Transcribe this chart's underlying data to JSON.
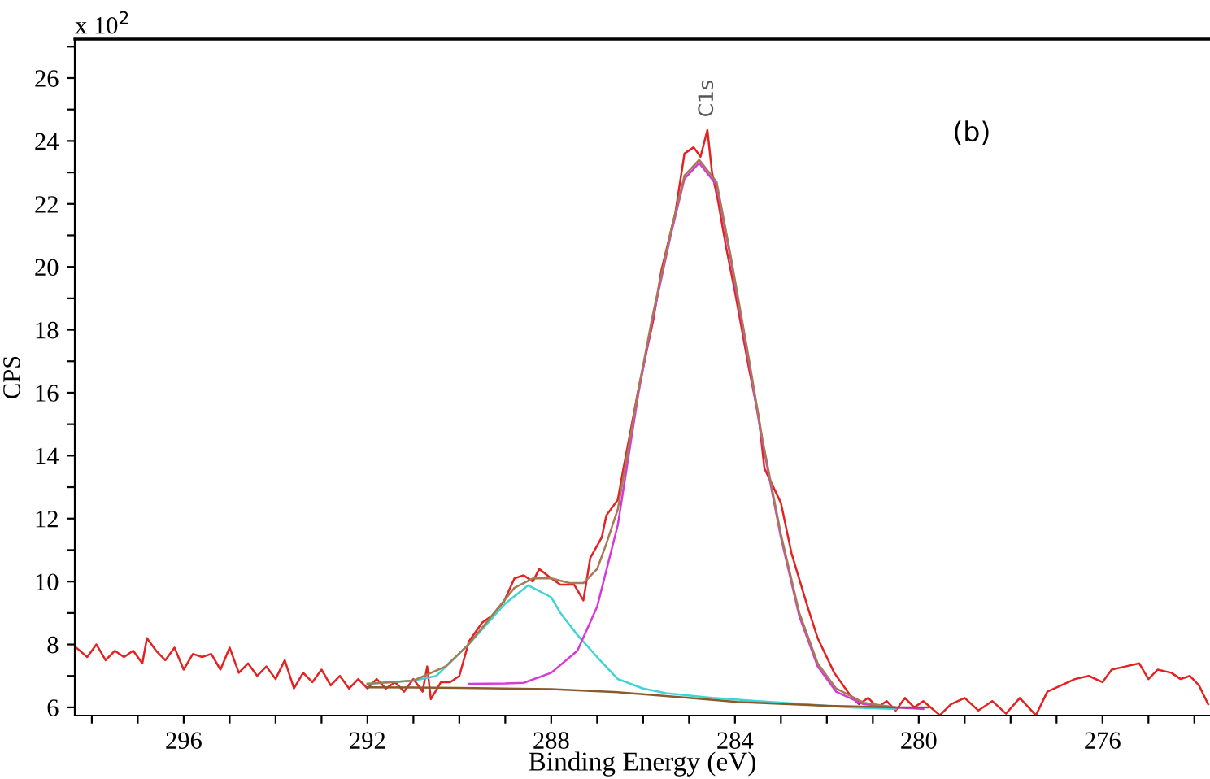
{
  "chart_data": {
    "type": "line",
    "xlabel": "Binding Energy (eV)",
    "ylabel": "CPS",
    "xlim": [
      298.37,
      273.66
    ],
    "ylim": [
      5.74,
      27.24
    ],
    "xticks": [
      {
        "value": 298,
        "label": null
      },
      {
        "value": 297,
        "label": null
      },
      296,
      {
        "value": 295,
        "label": null
      },
      {
        "value": 294,
        "label": null
      },
      {
        "value": 293,
        "label": null
      },
      292,
      {
        "value": 291,
        "label": null
      },
      {
        "value": 290,
        "label": null
      },
      {
        "value": 289,
        "label": null
      },
      288,
      {
        "value": 287,
        "label": null
      },
      {
        "value": 286,
        "label": null
      },
      {
        "value": 285,
        "label": null
      },
      284,
      {
        "value": 283,
        "label": null
      },
      {
        "value": 282,
        "label": null
      },
      {
        "value": 281,
        "label": null
      },
      280,
      {
        "value": 279,
        "label": null
      },
      {
        "value": 278,
        "label": null
      },
      {
        "value": 277,
        "label": null
      },
      276,
      {
        "value": 275,
        "label": null
      },
      {
        "value": 274,
        "label": null
      }
    ],
    "yticks": [
      6,
      {
        "value": 7,
        "label": null
      },
      8,
      {
        "value": 9,
        "label": null
      },
      10,
      {
        "value": 11,
        "label": null
      },
      12,
      {
        "value": 13,
        "label": null
      },
      14,
      {
        "value": 15,
        "label": null
      },
      16,
      {
        "value": 17,
        "label": null
      },
      18,
      {
        "value": 19,
        "label": null
      },
      20,
      {
        "value": 21,
        "label": null
      },
      22,
      {
        "value": 23,
        "label": null
      },
      24,
      {
        "value": 25,
        "label": null
      },
      26,
      {
        "value": 27,
        "label": null
      }
    ],
    "grid": false,
    "legend": false,
    "marker": "none",
    "line_style": "solid",
    "annotations": [
      "x 10$^{2}$",
      {
        "text": "C1s",
        "x": 284.6,
        "y": 24.35
      },
      "(b)"
    ],
    "series": [
      {
        "color": "#e32222",
        "x": [
          298.34,
          298.1,
          297.9,
          297.7,
          297.5,
          297.3,
          297.1,
          296.9,
          296.8,
          296.6,
          296.4,
          296.2,
          296.0,
          295.8,
          295.6,
          295.4,
          295.2,
          295.0,
          294.8,
          294.6,
          294.4,
          294.2,
          294.0,
          293.8,
          293.6,
          293.4,
          293.2,
          293.0,
          292.8,
          292.6,
          292.4,
          292.2,
          292.0,
          291.8,
          291.6,
          291.4,
          291.2,
          291.0,
          290.8,
          290.7,
          290.62,
          290.4,
          290.2,
          290.0,
          289.79,
          289.5,
          289.3,
          289.03,
          288.8,
          288.6,
          288.4,
          288.26,
          288.0,
          287.8,
          287.6,
          287.5,
          287.3,
          287.15,
          286.9,
          286.8,
          286.55,
          286.44,
          286.09,
          285.78,
          285.6,
          285.3,
          285.1,
          284.9,
          284.75,
          284.6,
          284.5,
          284.37,
          284.19,
          284.0,
          283.7,
          283.48,
          283.36,
          283.0,
          282.77,
          282.42,
          282.2,
          281.84,
          281.5,
          281.3,
          281.1,
          280.9,
          280.7,
          280.5,
          280.3,
          280.1,
          279.9,
          279.54,
          279.3,
          279.0,
          278.7,
          278.4,
          278.1,
          277.8,
          277.45,
          277.2,
          276.9,
          276.6,
          276.3,
          276.0,
          275.8,
          275.5,
          275.2,
          275.0,
          274.8,
          274.5,
          274.3,
          274.1,
          273.9,
          273.7
        ],
        "values": [
          7.9,
          7.6,
          8.0,
          7.5,
          7.8,
          7.6,
          7.8,
          7.4,
          8.2,
          7.8,
          7.5,
          7.9,
          7.2,
          7.7,
          7.6,
          7.7,
          7.2,
          7.9,
          7.1,
          7.4,
          7.0,
          7.3,
          6.9,
          7.5,
          6.6,
          7.1,
          6.8,
          7.2,
          6.7,
          7.0,
          6.6,
          6.9,
          6.6,
          6.9,
          6.6,
          6.8,
          6.5,
          6.9,
          6.5,
          7.3,
          6.26,
          6.8,
          6.8,
          7.0,
          8.1,
          8.7,
          8.9,
          9.36,
          10.1,
          10.2,
          10.0,
          10.4,
          10.1,
          9.9,
          9.9,
          9.9,
          9.4,
          10.75,
          11.4,
          12.1,
          12.6,
          13.5,
          16.2,
          18.3,
          19.9,
          21.7,
          23.6,
          23.8,
          23.5,
          24.35,
          23.0,
          22.1,
          20.6,
          19.2,
          16.8,
          15.2,
          13.6,
          12.5,
          10.9,
          9.2,
          8.2,
          7.1,
          6.4,
          6.1,
          6.3,
          6.0,
          6.2,
          5.9,
          6.3,
          6.0,
          6.2,
          5.75,
          6.1,
          6.3,
          5.9,
          6.2,
          5.8,
          6.3,
          5.75,
          6.5,
          6.7,
          6.9,
          7.0,
          6.8,
          7.2,
          7.3,
          7.4,
          6.9,
          7.2,
          7.1,
          6.9,
          7.0,
          6.7,
          6.1
        ]
      },
      {
        "color": "#40d4d4",
        "x": [
          292.0,
          291.0,
          290.5,
          289.8,
          289.0,
          288.5,
          288.0,
          287.8,
          287.43,
          287.0,
          286.55,
          286.0,
          285.5,
          284.5,
          283.5,
          282.5,
          281.5,
          280.5
        ],
        "values": [
          6.75,
          6.85,
          7.0,
          8.0,
          9.3,
          9.88,
          9.5,
          9.0,
          8.3,
          7.6,
          6.9,
          6.6,
          6.45,
          6.3,
          6.2,
          6.1,
          6.0,
          5.95
        ]
      },
      {
        "color": "#d63ad6",
        "x": [
          289.8,
          289.0,
          288.6,
          288.0,
          287.43,
          287.0,
          286.55,
          286.1,
          285.8,
          285.4,
          285.1,
          284.78,
          284.4,
          284.1,
          283.7,
          283.4,
          283.0,
          282.6,
          282.2,
          281.8,
          281.2,
          280.5,
          279.9
        ],
        "values": [
          6.75,
          6.76,
          6.78,
          7.1,
          7.8,
          9.2,
          11.8,
          16.0,
          18.3,
          21.0,
          22.8,
          23.3,
          22.6,
          20.3,
          17.0,
          14.4,
          11.4,
          8.9,
          7.3,
          6.5,
          6.1,
          6.0,
          5.95
        ]
      },
      {
        "color": "#a57a55",
        "x": [
          292.0,
          291.0,
          290.3,
          289.8,
          289.3,
          288.8,
          288.4,
          288.0,
          287.6,
          287.3,
          287.0,
          286.8,
          286.55,
          286.1,
          285.8,
          285.4,
          285.1,
          284.78,
          284.4,
          284.1,
          283.7,
          283.4,
          283.0,
          282.6,
          282.2,
          281.8,
          281.2,
          280.5
        ],
        "values": [
          6.75,
          6.85,
          7.3,
          8.0,
          8.9,
          9.8,
          10.1,
          10.1,
          9.95,
          9.95,
          10.4,
          11.2,
          12.3,
          16.1,
          18.4,
          21.1,
          22.9,
          23.4,
          22.7,
          20.4,
          17.1,
          14.5,
          11.5,
          9.0,
          7.4,
          6.6,
          6.15,
          6.0
        ]
      },
      {
        "color": "#8b5a2b",
        "x": [
          292.0,
          290.0,
          288.0,
          286.55,
          285.0,
          283.96,
          282.0,
          280.5,
          279.8
        ],
        "values": [
          6.64,
          6.62,
          6.58,
          6.48,
          6.3,
          6.17,
          6.05,
          6.0,
          6.0
        ]
      }
    ]
  }
}
